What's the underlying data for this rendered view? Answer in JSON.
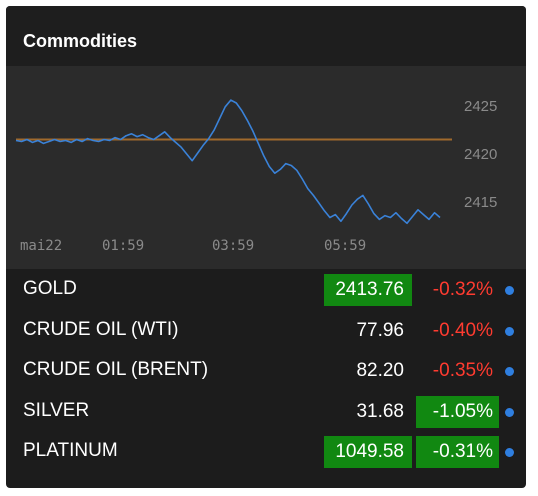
{
  "widget": {
    "title": "Commodities"
  },
  "chart_data": {
    "type": "line",
    "x_tick_labels": [
      "mai22",
      "01:59",
      "03:59",
      "05:59"
    ],
    "y_tick_labels": [
      "2425",
      "2420",
      "2415"
    ],
    "ylim": [
      2412,
      2428
    ],
    "reference_value": 2421.4,
    "series": [
      {
        "values": [
          2421.3,
          2421.2,
          2421.4,
          2421.1,
          2421.3,
          2421.0,
          2421.2,
          2421.4,
          2421.2,
          2421.3,
          2421.1,
          2421.4,
          2421.2,
          2421.5,
          2421.3,
          2421.2,
          2421.4,
          2421.3,
          2421.6,
          2421.4,
          2421.8,
          2422.0,
          2421.7,
          2421.9,
          2421.6,
          2421.4,
          2421.8,
          2422.2,
          2421.6,
          2421.1,
          2420.6,
          2419.9,
          2419.2,
          2420.0,
          2420.8,
          2421.5,
          2422.4,
          2423.6,
          2424.8,
          2425.5,
          2425.2,
          2424.4,
          2423.4,
          2422.3,
          2421.0,
          2419.7,
          2418.6,
          2417.9,
          2418.3,
          2418.9,
          2418.7,
          2418.2,
          2417.3,
          2416.3,
          2415.6,
          2414.8,
          2414.0,
          2413.3,
          2413.6,
          2412.9,
          2413.7,
          2414.6,
          2415.2,
          2415.6,
          2414.7,
          2413.7,
          2413.1,
          2413.5,
          2413.3,
          2413.8,
          2413.2,
          2412.7,
          2413.4,
          2414.1,
          2413.6,
          2413.1,
          2413.8,
          2413.3
        ]
      }
    ],
    "colors": {
      "line": "#3a82d8",
      "reference": "#a06a2c"
    }
  },
  "rows": [
    {
      "name": "GOLD",
      "price": "2413.76",
      "change": "-0.32%",
      "price_highlight": true,
      "direction": "down"
    },
    {
      "name": "CRUDE OIL (WTI)",
      "price": "77.96",
      "change": "-0.40%",
      "price_highlight": false,
      "direction": "down"
    },
    {
      "name": "CRUDE OIL (BRENT)",
      "price": "82.20",
      "change": "-0.35%",
      "price_highlight": false,
      "direction": "down"
    },
    {
      "name": "SILVER",
      "price": "31.68",
      "change": "-1.05%",
      "price_highlight": false,
      "direction": "up"
    },
    {
      "name": "PLATINUM",
      "price": "1049.58",
      "change": "-0.31%",
      "price_highlight": true,
      "direction": "up"
    }
  ],
  "colors": {
    "up": "#118811",
    "down": "#ff3b30",
    "dot": "#2f7fe0"
  }
}
